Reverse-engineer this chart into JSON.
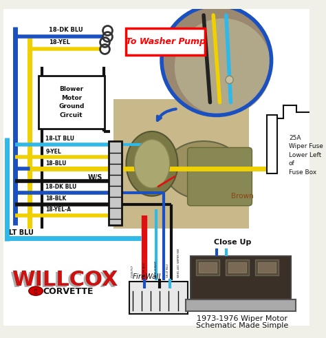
{
  "background_color": "#f0f0e8",
  "wire_colors": {
    "dark_blue": "#1a50c0",
    "yellow": "#f0d000",
    "light_blue": "#30b8e8",
    "red": "#dd1111",
    "black": "#111111",
    "brown": "#8B4513",
    "white": "#ffffff",
    "dark_blue2": "#2244aa"
  },
  "labels": {
    "washer_pump": "To Washer Pump",
    "blower_box": "Blower\nMotor\nGround\nCircuit",
    "ws": "W/S",
    "lt_blu": "LT BLU",
    "firewall": "FireWall",
    "close_up": "Close Up",
    "fuse_info": "25A\nWiper Fuse\nLower Left\nof\nFuse Box",
    "brown_label": "Brown",
    "bottom_title1": "1973-1976 Wiper Motor",
    "bottom_title2": "Schematic Made Simple"
  },
  "wire_labels_top": [
    "18-DK BLU",
    "18-YEL"
  ],
  "wire_labels_mid": [
    "18-LT BLU",
    "9-YEL",
    "18-BLU",
    "18-DK BLU",
    "18-BLK",
    "18-YEL-A"
  ]
}
